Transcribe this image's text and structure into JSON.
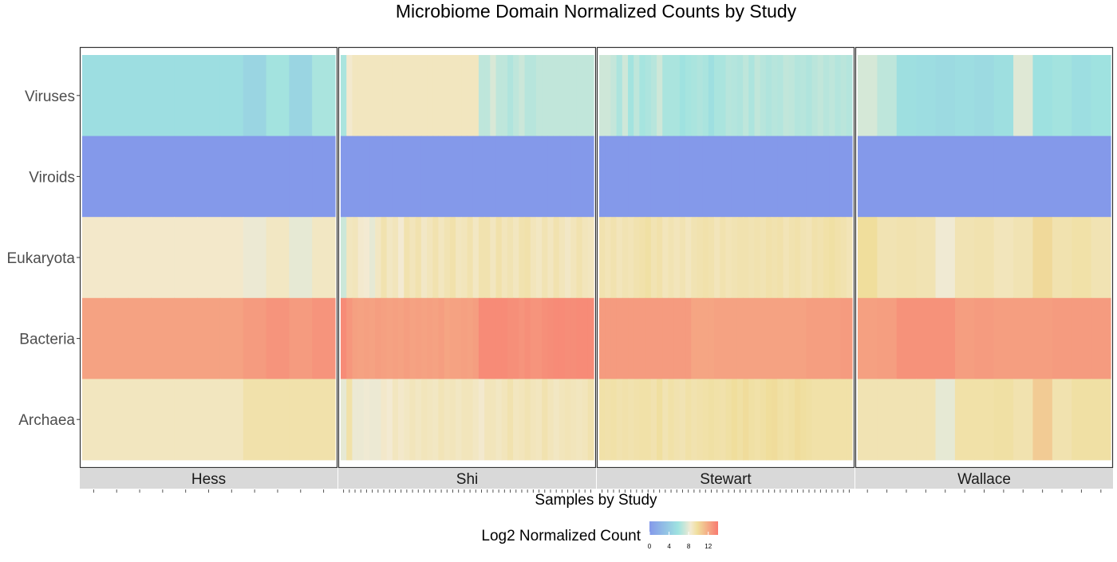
{
  "chart_data": {
    "type": "heatmap",
    "title": "Microbiome Domain Normalized Counts by Study",
    "xlabel": "Samples by Study",
    "ylabel": "",
    "rows": [
      "Viruses",
      "Viroids",
      "Eukaryota",
      "Bacteria",
      "Archaea"
    ],
    "legend": {
      "title": "Log2 Normalized Count",
      "ticks": [
        0,
        4,
        8,
        12
      ],
      "range": [
        0,
        14
      ],
      "colors": [
        "#8499ea",
        "#9fe3e0",
        "#f3ead2",
        "#f0de9c",
        "#f87a70"
      ]
    },
    "panels": [
      {
        "name": "Hess",
        "samples": 11,
        "values": {
          "Viruses": [
            5.5,
            5.5,
            5.5,
            5.5,
            5.5,
            5.5,
            5.5,
            4.8,
            6.0,
            4.8,
            6.2
          ],
          "Viroids": [
            0,
            0,
            0,
            0,
            0,
            0,
            0,
            0,
            0,
            0,
            0
          ],
          "Eukaryota": [
            8.6,
            8.6,
            8.6,
            8.6,
            8.6,
            8.6,
            8.6,
            8.2,
            8.8,
            8.0,
            8.8
          ],
          "Bacteria": [
            12.3,
            12.3,
            12.3,
            12.3,
            12.3,
            12.3,
            12.3,
            12.6,
            12.9,
            12.6,
            12.9
          ],
          "Archaea": [
            8.9,
            8.9,
            8.9,
            8.9,
            8.9,
            8.9,
            8.9,
            9.4,
            9.4,
            9.4,
            9.4
          ]
        }
      },
      {
        "name": "Shi",
        "samples": 44,
        "values": {
          "Viruses": [
            6.2,
            8.5,
            8.9,
            8.9,
            8.9,
            8.9,
            8.9,
            8.9,
            8.9,
            8.9,
            8.9,
            8.9,
            8.9,
            8.9,
            8.9,
            8.9,
            8.9,
            8.9,
            8.9,
            8.9,
            8.9,
            8.9,
            8.9,
            8.9,
            6.8,
            6.8,
            7.6,
            6.8,
            6.8,
            6.4,
            6.8,
            7.2,
            6.6,
            6.6,
            6.9,
            6.9,
            6.9,
            6.9,
            6.9,
            6.9,
            6.9,
            6.9,
            6.9,
            6.9
          ],
          "Viroids": [
            0,
            0,
            0,
            0,
            0,
            0,
            0,
            0,
            0,
            0,
            0,
            0,
            0,
            0,
            0,
            0,
            0,
            0,
            0,
            0,
            0,
            0,
            0,
            0,
            0,
            0,
            0,
            0,
            0,
            0,
            0,
            0,
            0,
            0,
            0,
            0,
            0,
            0,
            0,
            0,
            0,
            0,
            0,
            0
          ],
          "Eukaryota": [
            7.2,
            8.9,
            9.0,
            8.5,
            8.4,
            8.0,
            8.8,
            9.3,
            8.8,
            9.0,
            8.4,
            9.3,
            9.0,
            9.3,
            8.7,
            9.0,
            9.3,
            8.9,
            9.2,
            9.4,
            8.9,
            9.0,
            9.3,
            8.8,
            9.3,
            9.3,
            8.9,
            9.4,
            9.0,
            9.2,
            8.9,
            9.3,
            9.4,
            9.0,
            8.8,
            9.2,
            8.9,
            9.3,
            9.0,
            8.7,
            9.0,
            9.3,
            9.0,
            8.9
          ],
          "Bacteria": [
            13.3,
            12.8,
            12.4,
            12.3,
            12.4,
            12.3,
            12.5,
            12.4,
            12.3,
            12.4,
            12.3,
            12.5,
            12.3,
            12.4,
            12.3,
            12.4,
            12.3,
            12.5,
            12.2,
            12.3,
            12.3,
            12.4,
            12.3,
            12.5,
            13.3,
            13.3,
            13.3,
            13.3,
            13.3,
            13.1,
            13.1,
            12.9,
            13.1,
            12.9,
            12.9,
            13.1,
            13.2,
            13.3,
            13.3,
            13.2,
            13.2,
            13.3,
            13.3,
            13.3
          ],
          "Archaea": [
            8.0,
            9.5,
            8.2,
            8.2,
            8.3,
            8.2,
            8.2,
            8.6,
            8.4,
            8.9,
            8.6,
            8.8,
            9.0,
            8.8,
            9.0,
            8.9,
            8.8,
            9.1,
            8.9,
            9.0,
            8.8,
            9.0,
            9.0,
            8.8,
            8.5,
            9.0,
            9.0,
            8.8,
            9.0,
            9.3,
            8.9,
            9.0,
            9.2,
            9.0,
            8.9,
            9.3,
            9.0,
            8.8,
            9.0,
            9.1,
            9.0,
            8.9,
            9.0,
            9.3
          ]
        }
      },
      {
        "name": "Stewart",
        "samples": 44,
        "values": {
          "Viruses": [
            7.3,
            7.3,
            7.0,
            6.3,
            7.3,
            6.0,
            6.8,
            6.1,
            6.3,
            6.6,
            7.3,
            6.2,
            6.2,
            6.2,
            5.8,
            6.1,
            6.2,
            6.4,
            6.2,
            5.6,
            6.2,
            6.2,
            6.6,
            6.5,
            6.4,
            6.8,
            6.3,
            6.9,
            6.6,
            6.4,
            6.6,
            6.5,
            6.9,
            6.8,
            6.5,
            6.6,
            6.4,
            6.7,
            6.9,
            6.6,
            6.8,
            6.5,
            6.7,
            6.5
          ],
          "Viroids": [
            0,
            0,
            0,
            0,
            0,
            0,
            0,
            0,
            0,
            0,
            0,
            0,
            0,
            0,
            0,
            0,
            0,
            0,
            0,
            0,
            0,
            0,
            0,
            0,
            0,
            0,
            0,
            0,
            0,
            0,
            0,
            0,
            0,
            0,
            0,
            0,
            0,
            0,
            0,
            0,
            0,
            0,
            0,
            0
          ],
          "Eukaryota": [
            9.3,
            9.1,
            9.3,
            9.0,
            9.2,
            9.1,
            9.3,
            9.4,
            9.6,
            9.2,
            9.4,
            9.0,
            9.2,
            9.0,
            9.2,
            8.9,
            9.2,
            9.3,
            9.4,
            9.3,
            9.0,
            9.3,
            9.1,
            9.2,
            9.3,
            9.3,
            9.2,
            9.3,
            9.2,
            9.4,
            9.3,
            9.4,
            9.1,
            9.3,
            9.4,
            9.2,
            9.1,
            9.4,
            9.3,
            9.5,
            9.6,
            9.4,
            9.3,
            9.1
          ],
          "Bacteria": [
            12.6,
            12.6,
            12.6,
            12.6,
            12.6,
            12.6,
            12.6,
            12.6,
            12.6,
            12.6,
            12.6,
            12.6,
            12.6,
            12.6,
            12.6,
            12.6,
            12.2,
            12.2,
            12.2,
            12.2,
            12.3,
            12.3,
            12.3,
            12.3,
            12.3,
            12.3,
            12.3,
            12.3,
            12.3,
            12.3,
            12.3,
            12.3,
            12.3,
            12.3,
            12.3,
            12.3,
            12.5,
            12.5,
            12.5,
            12.5,
            12.5,
            12.5,
            12.6,
            12.6
          ],
          "Archaea": [
            9.5,
            9.4,
            9.5,
            9.3,
            9.4,
            9.3,
            9.4,
            9.5,
            9.5,
            9.3,
            9.7,
            9.2,
            9.5,
            9.3,
            9.2,
            9.5,
            9.3,
            9.4,
            9.5,
            9.6,
            9.5,
            9.4,
            9.6,
            9.8,
            9.6,
            9.9,
            9.6,
            9.5,
            9.6,
            9.8,
            9.9,
            9.6,
            9.5,
            9.6,
            9.9,
            9.7,
            9.6,
            9.5,
            9.5,
            9.5,
            9.5,
            9.5,
            9.5,
            9.5
          ]
        }
      },
      {
        "name": "Wallace",
        "samples": 13,
        "values": {
          "Viruses": [
            7.5,
            6.8,
            5.6,
            5.4,
            5.2,
            5.4,
            5.2,
            5.6,
            7.8,
            5.7,
            6.0,
            5.5,
            5.8
          ],
          "Viroids": [
            0,
            0,
            0,
            0,
            0,
            0,
            0,
            0,
            0,
            0,
            0,
            0,
            0
          ],
          "Eukaryota": [
            9.8,
            9.2,
            9.3,
            9.2,
            8.3,
            9.2,
            9.3,
            9.0,
            9.2,
            10.0,
            9.3,
            9.5,
            9.2
          ],
          "Bacteria": [
            12.4,
            12.5,
            13.0,
            13.0,
            13.0,
            12.5,
            12.6,
            12.5,
            12.5,
            12.5,
            12.6,
            12.6,
            12.6
          ],
          "Archaea": [
            9.2,
            9.2,
            9.2,
            9.2,
            8.0,
            9.5,
            9.5,
            9.6,
            9.3,
            10.6,
            9.3,
            9.6,
            9.6
          ]
        }
      }
    ]
  }
}
